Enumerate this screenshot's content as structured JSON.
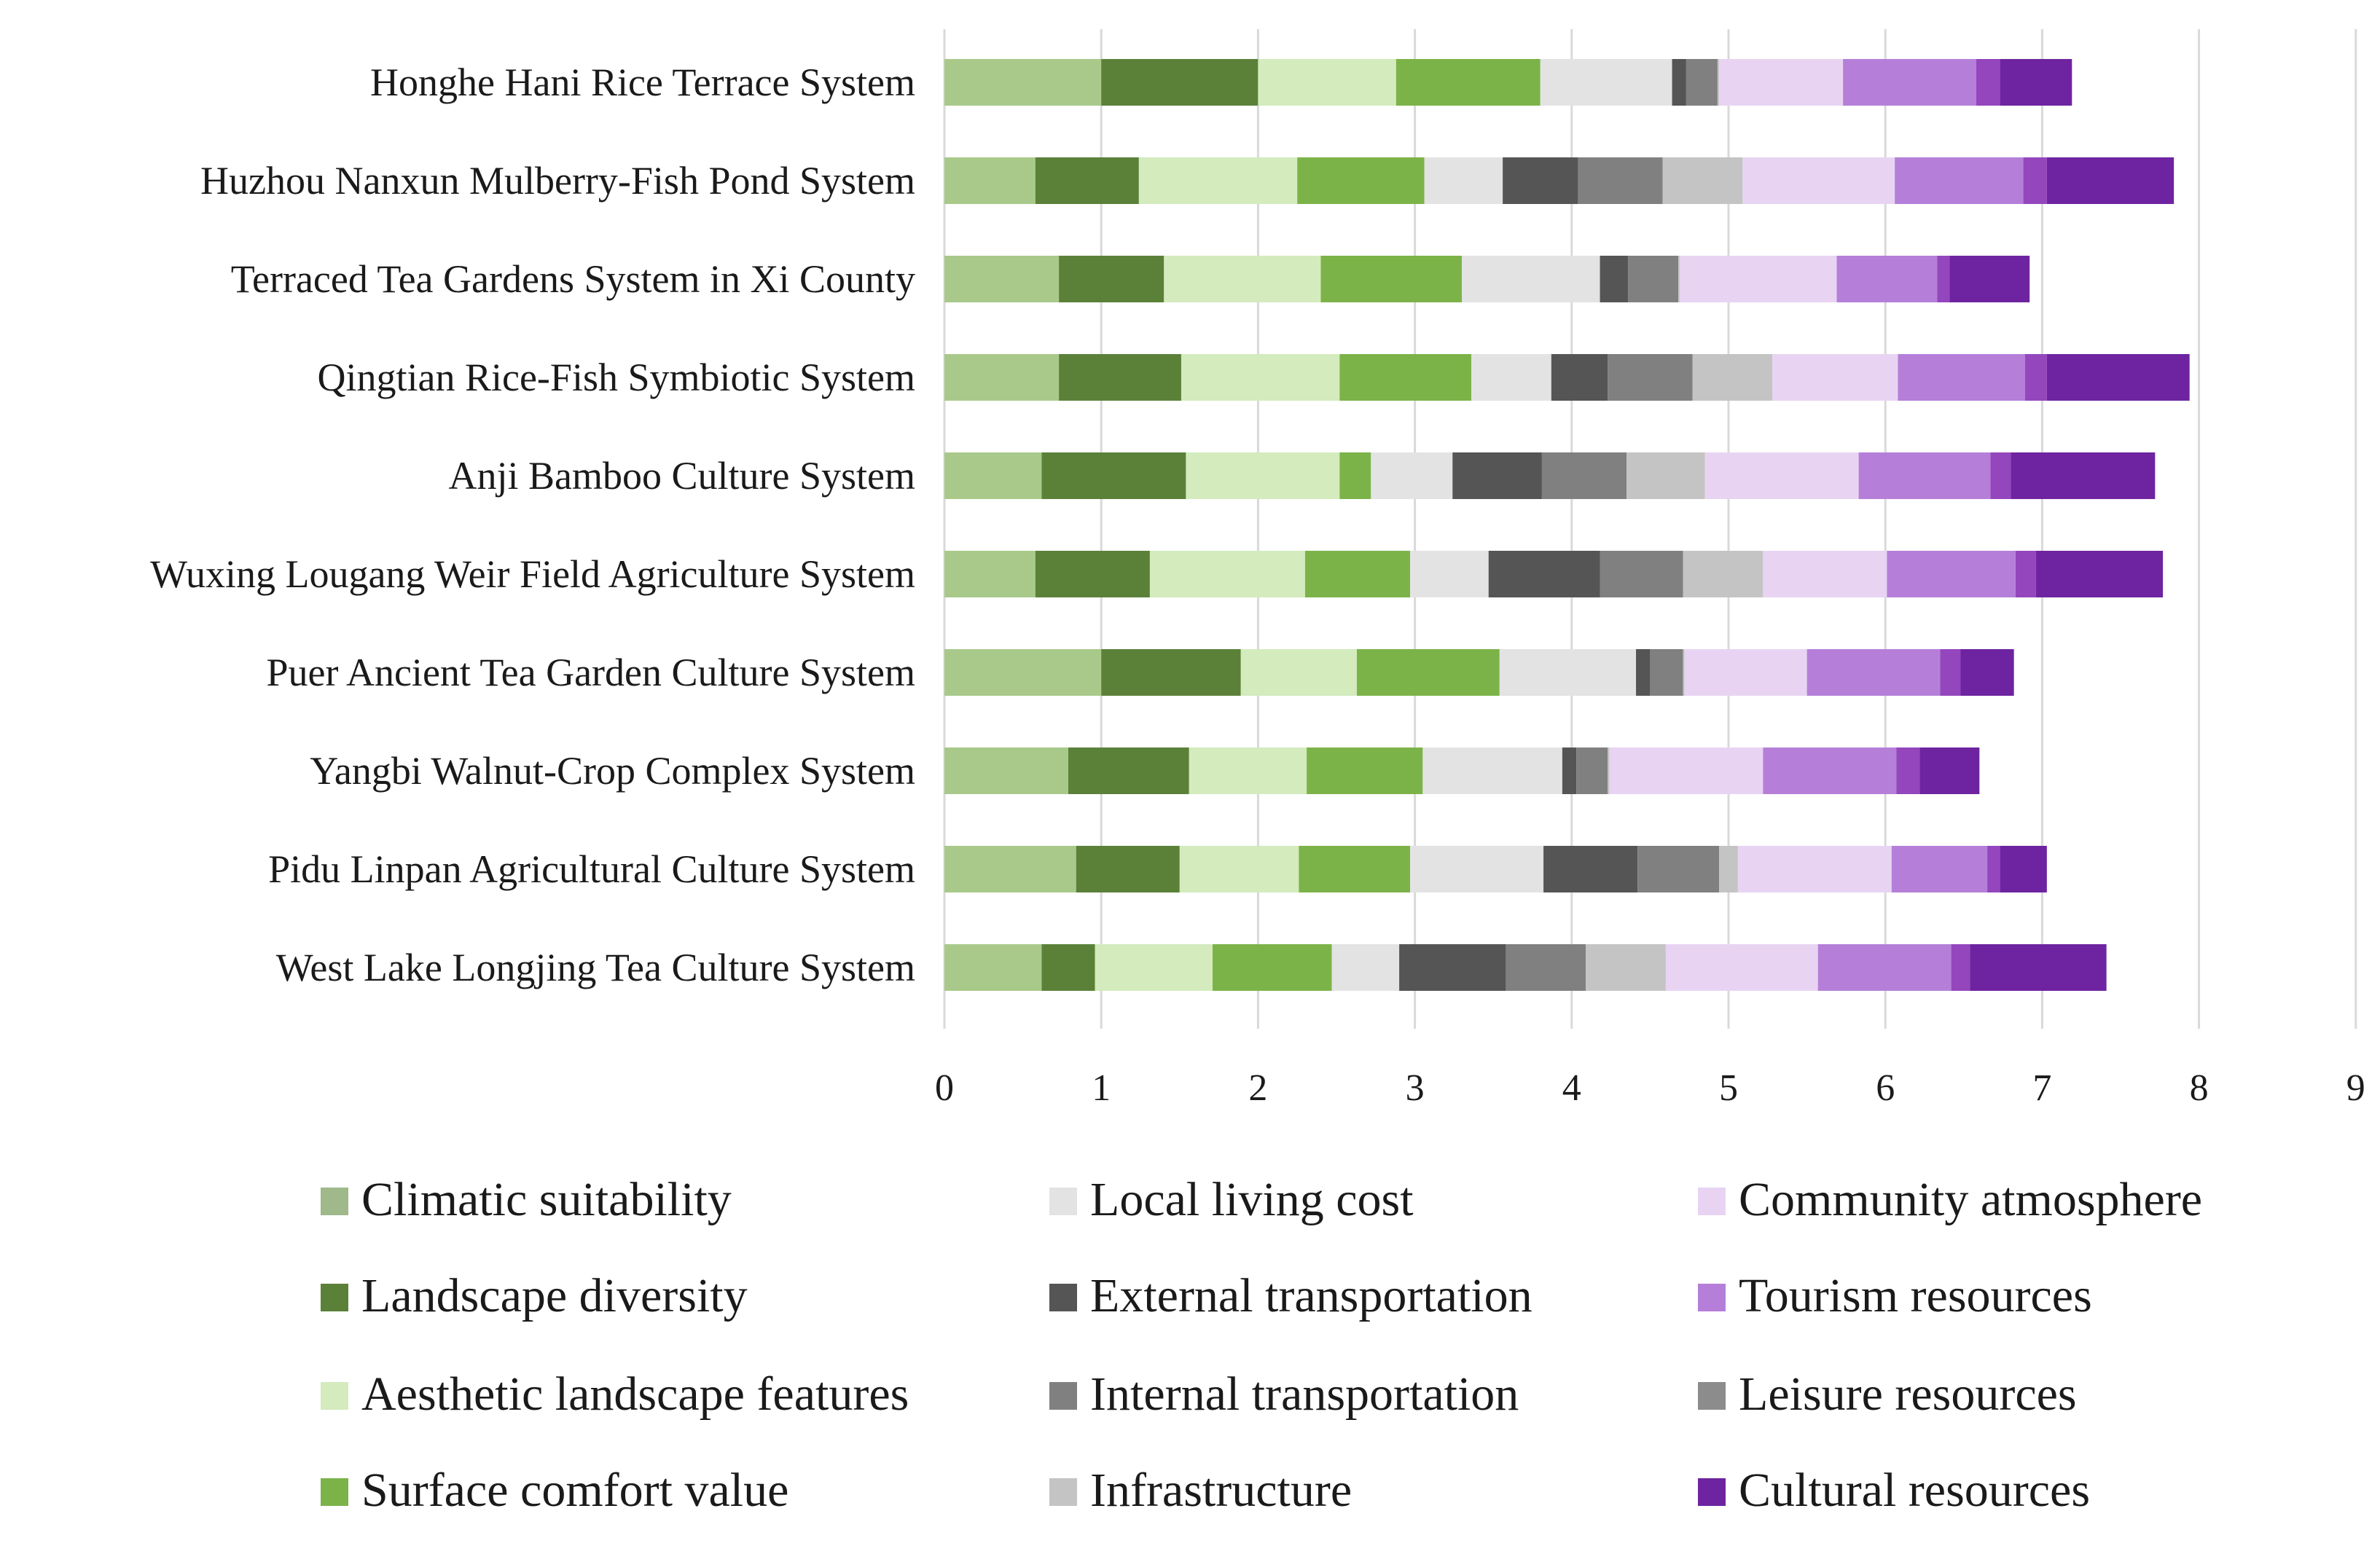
{
  "chart_data": {
    "type": "bar",
    "orientation": "horizontal",
    "stacked": true,
    "title": "",
    "xlabel": "",
    "ylabel": "",
    "xlim": [
      0,
      9
    ],
    "x_ticks": [
      "0",
      "1",
      "2",
      "3",
      "4",
      "5",
      "6",
      "7",
      "8",
      "9"
    ],
    "grid": "vertical",
    "legend_position": "bottom",
    "categories": [
      "Honghe Hani Rice Terrace System",
      "Huzhou Nanxun Mulberry-Fish Pond System",
      "Terraced Tea Gardens System in Xi County",
      "Qingtian Rice-Fish Symbiotic System",
      "Anji Bamboo Culture System",
      "Wuxing Lougang Weir Field Agriculture System",
      "Puer Ancient Tea Garden Culture System",
      "Yangbi Walnut-Crop Complex System",
      "Pidu Linpan Agricultural Culture System",
      "West Lake Longjing Tea Culture System"
    ],
    "series": [
      {
        "name": "Climatic suitability",
        "color": "#a9c98a",
        "values": [
          1.0,
          0.58,
          0.73,
          0.73,
          0.62,
          0.58,
          1.0,
          0.79,
          0.84,
          0.62
        ]
      },
      {
        "name": "Landscape diversity",
        "color": "#5b8139",
        "values": [
          1.0,
          0.66,
          0.67,
          0.78,
          0.92,
          0.73,
          0.89,
          0.77,
          0.66,
          0.34
        ]
      },
      {
        "name": "Aesthetic landscape features",
        "color": "#d3ebbd",
        "values": [
          0.88,
          1.01,
          1.0,
          1.01,
          0.98,
          0.99,
          0.74,
          0.75,
          0.76,
          0.75
        ]
      },
      {
        "name": "Surface comfort value",
        "color": "#7cb349",
        "values": [
          0.92,
          0.81,
          0.9,
          0.84,
          0.2,
          0.67,
          0.91,
          0.74,
          0.71,
          0.76
        ]
      },
      {
        "name": "Local living cost",
        "color": "#e3e3e3",
        "values": [
          0.84,
          0.5,
          0.88,
          0.51,
          0.52,
          0.5,
          0.87,
          0.89,
          0.85,
          0.43
        ]
      },
      {
        "name": "External transportation",
        "color": "#555555",
        "values": [
          0.09,
          0.48,
          0.18,
          0.36,
          0.57,
          0.71,
          0.09,
          0.09,
          0.6,
          0.68
        ]
      },
      {
        "name": "Internal transportation",
        "color": "#808080",
        "values": [
          0.2,
          0.54,
          0.32,
          0.54,
          0.54,
          0.53,
          0.21,
          0.2,
          0.52,
          0.51
        ]
      },
      {
        "name": "Infrastructure",
        "color": "#c4c4c4",
        "values": [
          0.01,
          0.51,
          0.01,
          0.51,
          0.5,
          0.51,
          0.01,
          0.01,
          0.12,
          0.51
        ]
      },
      {
        "name": "Community atmosphere",
        "color": "#e8d4f2",
        "values": [
          0.79,
          0.97,
          1.0,
          0.8,
          0.98,
          0.79,
          0.78,
          0.98,
          0.98,
          0.97
        ]
      },
      {
        "name": "Tourism resources",
        "color": "#b57fd9",
        "values": [
          0.85,
          0.82,
          0.64,
          0.81,
          0.84,
          0.82,
          0.85,
          0.85,
          0.61,
          0.85
        ]
      },
      {
        "name": "Leisure resources",
        "color": "#9446bd",
        "values": [
          0.15,
          0.15,
          0.08,
          0.14,
          0.13,
          0.13,
          0.13,
          0.15,
          0.08,
          0.12
        ]
      },
      {
        "name": "Cultural resources",
        "color": "#6e24a0",
        "values": [
          0.46,
          0.81,
          0.51,
          0.91,
          0.92,
          0.81,
          0.34,
          0.38,
          0.3,
          0.87
        ]
      }
    ],
    "legend": {
      "columns": [
        [
          "Climatic suitability",
          "Landscape diversity",
          "Aesthetic landscape features",
          "Surface comfort value"
        ],
        [
          "Local living cost",
          "External transportation",
          "Internal transportation",
          "Infrastructure"
        ],
        [
          "Community atmosphere",
          "Tourism resources",
          "Leisure resources",
          "Cultural resources"
        ]
      ],
      "swatch_colors": [
        [
          "#9fb98a",
          "#5b8139",
          "#d3ebbd",
          "#7cb349"
        ],
        [
          "#e3e3e3",
          "#555555",
          "#808080",
          "#c4c4c4"
        ],
        [
          "#e8d4f2",
          "#b57fd9",
          "#8c8c8c",
          "#6e24a0"
        ]
      ]
    }
  }
}
